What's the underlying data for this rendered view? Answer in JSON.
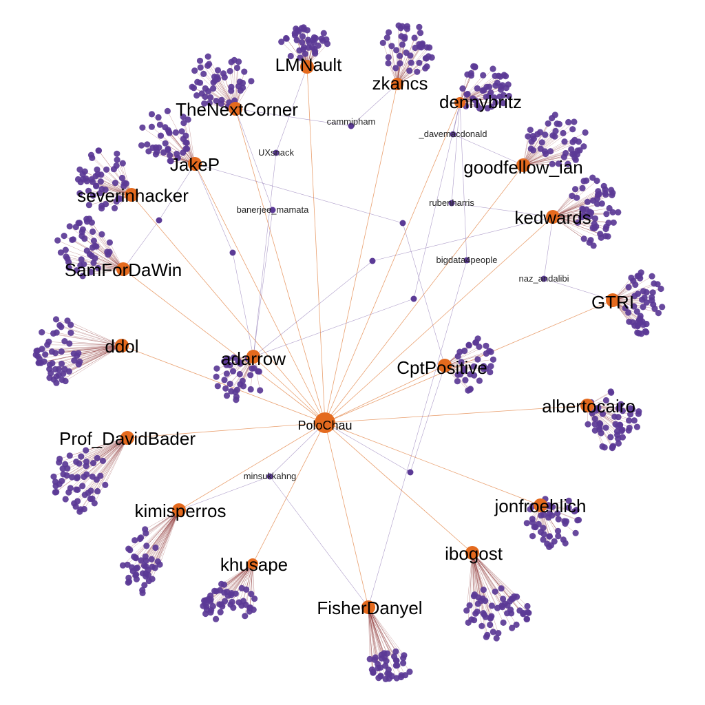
{
  "colors": {
    "hub": "#e46a1e",
    "leaf": "#5b3a96",
    "edge_hub": "#e4874a",
    "edge_leaf": "#8a2f2f",
    "edge_purple": "#6a4a9c"
  },
  "graph": {
    "center": {
      "id": "PoloChau",
      "label": "PoloChau"
    },
    "hubs": [
      {
        "id": "LMNault",
        "label": "LMNault"
      },
      {
        "id": "zkancs",
        "label": "zkancs"
      },
      {
        "id": "dennybritz",
        "label": "dennybritz"
      },
      {
        "id": "TheNextCorner",
        "label": "TheNextCorner"
      },
      {
        "id": "JakeP",
        "label": "JakeP"
      },
      {
        "id": "goodfellow_ian",
        "label": "goodfellow_ian"
      },
      {
        "id": "severinhacker",
        "label": "severinhacker"
      },
      {
        "id": "kedwards",
        "label": "kedwards"
      },
      {
        "id": "SamForDaWin",
        "label": "SamForDaWin"
      },
      {
        "id": "GTRI",
        "label": "GTRI"
      },
      {
        "id": "ddol",
        "label": "ddol"
      },
      {
        "id": "adarrow",
        "label": "adarrow"
      },
      {
        "id": "CptPositive",
        "label": "CptPositive"
      },
      {
        "id": "albertocairo",
        "label": "albertocairo"
      },
      {
        "id": "Prof_DavidBader",
        "label": "Prof_DavidBader"
      },
      {
        "id": "kimisperros",
        "label": "kimisperros"
      },
      {
        "id": "jonfroehlich",
        "label": "jonfroehlich"
      },
      {
        "id": "ibogost",
        "label": "ibogost"
      },
      {
        "id": "khusape",
        "label": "khusape"
      },
      {
        "id": "FisherDanyel",
        "label": "FisherDanyel"
      }
    ],
    "bridges": [
      {
        "id": "cammipham",
        "label": "cammipham"
      },
      {
        "id": "_davemacdonald",
        "label": "_davemacdonald"
      },
      {
        "id": "UXsnack",
        "label": "UXsnack"
      },
      {
        "id": "banerjee_mamata",
        "label": "banerjee_mamata"
      },
      {
        "id": "rubenharris",
        "label": "rubenharris"
      },
      {
        "id": "bigdata4people",
        "label": "bigdata4people"
      },
      {
        "id": "naz_andalibi",
        "label": "naz_andalibi"
      },
      {
        "id": "minsukkahng",
        "label": "minsukkahng"
      },
      {
        "id": "u1",
        "label": ""
      },
      {
        "id": "u2",
        "label": ""
      },
      {
        "id": "u3",
        "label": ""
      },
      {
        "id": "u4",
        "label": ""
      },
      {
        "id": "u5",
        "label": ""
      },
      {
        "id": "u6",
        "label": ""
      }
    ],
    "hub_edges": [
      [
        "PoloChau",
        "LMNault"
      ],
      [
        "PoloChau",
        "zkancs"
      ],
      [
        "PoloChau",
        "dennybritz"
      ],
      [
        "PoloChau",
        "TheNextCorner"
      ],
      [
        "PoloChau",
        "JakeP"
      ],
      [
        "PoloChau",
        "goodfellow_ian"
      ],
      [
        "PoloChau",
        "kedwards"
      ],
      [
        "PoloChau",
        "SamForDaWin"
      ],
      [
        "PoloChau",
        "GTRI"
      ],
      [
        "PoloChau",
        "ddol"
      ],
      [
        "PoloChau",
        "adarrow"
      ],
      [
        "PoloChau",
        "CptPositive"
      ],
      [
        "PoloChau",
        "albertocairo"
      ],
      [
        "PoloChau",
        "Prof_DavidBader"
      ],
      [
        "PoloChau",
        "kimisperros"
      ],
      [
        "PoloChau",
        "jonfroehlich"
      ],
      [
        "PoloChau",
        "ibogost"
      ],
      [
        "PoloChau",
        "khusape"
      ],
      [
        "PoloChau",
        "FisherDanyel"
      ],
      [
        "PoloChau",
        "severinhacker"
      ]
    ],
    "bridge_edges": [
      [
        "cammipham",
        "TheNextCorner"
      ],
      [
        "cammipham",
        "zkancs"
      ],
      [
        "_davemacdonald",
        "dennybritz"
      ],
      [
        "_davemacdonald",
        "goodfellow_ian"
      ],
      [
        "UXsnack",
        "LMNault"
      ],
      [
        "UXsnack",
        "adarrow"
      ],
      [
        "banerjee_mamata",
        "TheNextCorner"
      ],
      [
        "banerjee_mamata",
        "adarrow"
      ],
      [
        "rubenharris",
        "dennybritz"
      ],
      [
        "rubenharris",
        "kedwards"
      ],
      [
        "bigdata4people",
        "dennybritz"
      ],
      [
        "bigdata4people",
        "FisherDanyel"
      ],
      [
        "naz_andalibi",
        "kedwards"
      ],
      [
        "naz_andalibi",
        "GTRI"
      ],
      [
        "minsukkahng",
        "PoloChau"
      ],
      [
        "minsukkahng",
        "FisherDanyel"
      ],
      [
        "minsukkahng",
        "kimisperros"
      ],
      [
        "u1",
        "JakeP"
      ],
      [
        "u1",
        "SamForDaWin"
      ],
      [
        "u2",
        "JakeP"
      ],
      [
        "u2",
        "adarrow"
      ],
      [
        "u3",
        "JakeP"
      ],
      [
        "u3",
        "CptPositive"
      ],
      [
        "u4",
        "kedwards"
      ],
      [
        "u4",
        "adarrow"
      ],
      [
        "u5",
        "dennybritz"
      ],
      [
        "u5",
        "adarrow"
      ],
      [
        "u6",
        "CptPositive"
      ],
      [
        "u6",
        "PoloChau"
      ]
    ],
    "leaf_clusters": [
      {
        "hub": "LMNault",
        "count": 38
      },
      {
        "hub": "zkancs",
        "count": 42
      },
      {
        "hub": "dennybritz",
        "count": 44
      },
      {
        "hub": "TheNextCorner",
        "count": 48
      },
      {
        "hub": "JakeP",
        "count": 40
      },
      {
        "hub": "goodfellow_ian",
        "count": 46
      },
      {
        "hub": "severinhacker",
        "count": 46
      },
      {
        "hub": "kedwards",
        "count": 54
      },
      {
        "hub": "SamForDaWin",
        "count": 44
      },
      {
        "hub": "GTRI",
        "count": 50
      },
      {
        "hub": "ddol",
        "count": 50
      },
      {
        "hub": "adarrow",
        "count": 36
      },
      {
        "hub": "CptPositive",
        "count": 34
      },
      {
        "hub": "albertocairo",
        "count": 50
      },
      {
        "hub": "Prof_DavidBader",
        "count": 52
      },
      {
        "hub": "kimisperros",
        "count": 44
      },
      {
        "hub": "jonfroehlich",
        "count": 46
      },
      {
        "hub": "ibogost",
        "count": 56
      },
      {
        "hub": "khusape",
        "count": 48
      },
      {
        "hub": "FisherDanyel",
        "count": 40
      }
    ]
  }
}
